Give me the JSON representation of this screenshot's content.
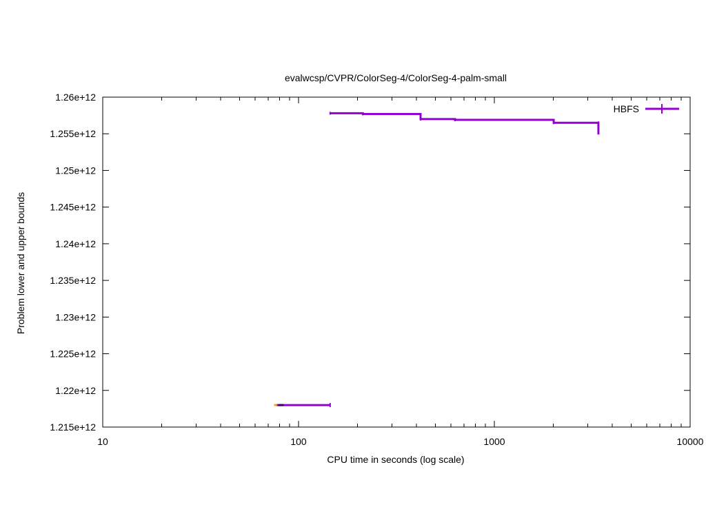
{
  "chart_data": {
    "type": "line",
    "title": "evalwcsp/CVPR/ColorSeg-4/ColorSeg-4-palm-small",
    "xlabel": "CPU time in seconds (log scale)",
    "ylabel": "Problem lower and upper bounds",
    "xscale": "log",
    "xlim": [
      10,
      10000
    ],
    "ylim": [
      1215000000000.0,
      1260000000000.0
    ],
    "grid": false,
    "legend_position": "top-right",
    "x_ticks": [
      {
        "value": 10,
        "label": "10"
      },
      {
        "value": 100,
        "label": "100"
      },
      {
        "value": 1000,
        "label": "1000"
      },
      {
        "value": 10000,
        "label": "10000"
      }
    ],
    "y_ticks": [
      {
        "value": 1215000000000.0,
        "label": "1.215e+12"
      },
      {
        "value": 1220000000000.0,
        "label": "1.22e+12"
      },
      {
        "value": 1225000000000.0,
        "label": "1.225e+12"
      },
      {
        "value": 1230000000000.0,
        "label": "1.23e+12"
      },
      {
        "value": 1235000000000.0,
        "label": "1.235e+12"
      },
      {
        "value": 1240000000000.0,
        "label": "1.24e+12"
      },
      {
        "value": 1245000000000.0,
        "label": "1.245e+12"
      },
      {
        "value": 1250000000000.0,
        "label": "1.25e+12"
      },
      {
        "value": 1255000000000.0,
        "label": "1.255e+12"
      },
      {
        "value": 1260000000000.0,
        "label": "1.26e+12"
      }
    ],
    "series": [
      {
        "name": "HBFS",
        "color": "#9400d3",
        "upper_bound": [
          {
            "x": 145,
            "y": 1257800000000.0
          },
          {
            "x": 213,
            "y": 1257700000000.0
          },
          {
            "x": 420,
            "y": 1257000000000.0
          },
          {
            "x": 630,
            "y": 1256900000000.0
          },
          {
            "x": 2010,
            "y": 1256500000000.0
          },
          {
            "x": 3400,
            "y": 1256500000000.0
          }
        ],
        "upper_bound_end": {
          "x": 3400,
          "y": 1254900000000.0
        },
        "lower_bound": [
          {
            "x": 75,
            "y": 1218000000000.0
          },
          {
            "x": 145,
            "y": 1218000000000.0
          }
        ]
      }
    ]
  }
}
